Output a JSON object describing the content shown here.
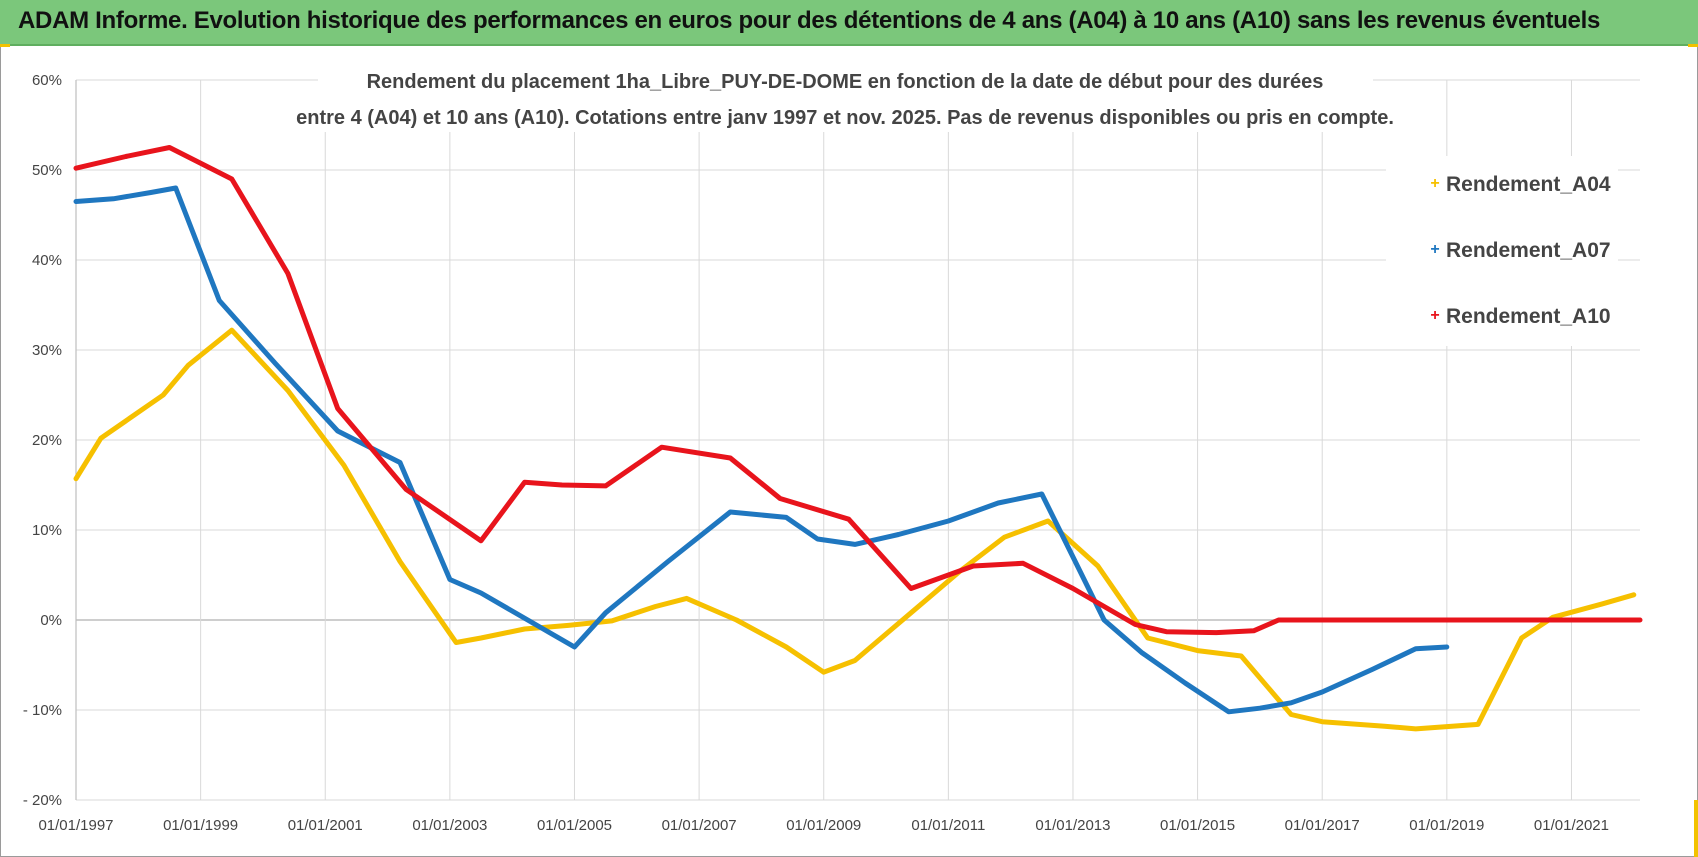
{
  "banner": {
    "title": "ADAM Informe. Evolution historique des performances en euros pour des détentions de 4 ans (A04) à 10 ans (A10) sans les revenus éventuels"
  },
  "colors": {
    "banner": "#7bc77b",
    "a04": "#f6c000",
    "a07": "#1f77c0",
    "a10": "#e8141c",
    "grid": "#d9d9d9",
    "zero_line": "#bdbdbd"
  },
  "chart_data": {
    "type": "line",
    "title_lines": [
      "Rendement du placement 1ha_Libre_PUY-DE-DOME en fonction de la date de début pour des durées",
      "entre 4 (A04) et 10 ans (A10). Cotations entre janv 1997 et nov. 2025. Pas de revenus disponibles ou pris en compte."
    ],
    "xlabel": "",
    "ylabel": "",
    "xlim": [
      1997.0,
      2022.1
    ],
    "ylim": [
      -20,
      60
    ],
    "grid": true,
    "legend_position": "top-right",
    "x_ticks": [
      1997,
      1999,
      2001,
      2003,
      2005,
      2007,
      2009,
      2011,
      2013,
      2015,
      2017,
      2019,
      2021
    ],
    "x_tick_labels": [
      "01/01/1997",
      "01/01/1999",
      "01/01/2001",
      "01/01/2003",
      "01/01/2005",
      "01/01/2007",
      "01/01/2009",
      "01/01/2011",
      "01/01/2013",
      "01/01/2015",
      "01/01/2017",
      "01/01/2019",
      "01/01/2021"
    ],
    "y_ticks": [
      60,
      50,
      40,
      30,
      20,
      10,
      0,
      -10,
      -20
    ],
    "y_tick_labels": [
      "60%",
      "50%",
      "40%",
      "30%",
      "20%",
      "10%",
      "0%",
      "- 10%",
      "- 20%"
    ],
    "series": [
      {
        "name": "Rendement_A04",
        "color": "#f6c000",
        "x": [
          1997.0,
          1997.4,
          1998.4,
          1998.8,
          1999.5,
          2000.4,
          2001.3,
          2002.2,
          2003.1,
          2003.5,
          2004.2,
          2004.9,
          2005.6,
          2006.3,
          2006.8,
          2007.6,
          2008.4,
          2009.0,
          2009.5,
          2010.4,
          2011.2,
          2011.9,
          2012.6,
          2013.4,
          2014.2,
          2015.0,
          2015.7,
          2016.5,
          2017.0,
          2018.0,
          2018.5,
          2019.5,
          2020.2,
          2020.7,
          2021.5,
          2022.0
        ],
        "y": [
          15.7,
          20.2,
          25.0,
          28.3,
          32.2,
          25.5,
          17.2,
          6.5,
          -2.5,
          -2.0,
          -1.0,
          -0.6,
          -0.1,
          1.5,
          2.4,
          0.0,
          -3.0,
          -5.8,
          -4.5,
          0.8,
          5.5,
          9.2,
          11.0,
          6.0,
          -2.0,
          -3.4,
          -4.0,
          -10.5,
          -11.3,
          -11.8,
          -12.1,
          -11.6,
          -2.0,
          0.3,
          1.8,
          2.8
        ]
      },
      {
        "name": "Rendement_A07",
        "color": "#1f77c0",
        "x": [
          1997.0,
          1997.6,
          1998.2,
          1998.6,
          1999.3,
          2000.2,
          2001.2,
          2002.2,
          2003.0,
          2003.5,
          2004.5,
          2005.0,
          2005.5,
          2006.5,
          2007.5,
          2008.4,
          2008.9,
          2009.5,
          2010.2,
          2011.0,
          2011.8,
          2012.5,
          2013.0,
          2013.5,
          2014.1,
          2014.8,
          2015.5,
          2016.0,
          2016.5,
          2017.0,
          2017.8,
          2018.5,
          2019.0
        ],
        "y": [
          46.5,
          46.8,
          47.5,
          48.0,
          35.5,
          28.5,
          21.0,
          17.5,
          4.5,
          3.0,
          -1.0,
          -3.0,
          0.8,
          6.5,
          12.0,
          11.4,
          9.0,
          8.4,
          9.5,
          11.0,
          13.0,
          14.0,
          7.0,
          0.0,
          -3.6,
          -7.0,
          -10.2,
          -9.8,
          -9.2,
          -8.0,
          -5.5,
          -3.2,
          -3.0
        ]
      },
      {
        "name": "Rendement_A10",
        "color": "#e8141c",
        "x": [
          1997.0,
          1997.8,
          1998.5,
          1999.5,
          2000.4,
          2001.2,
          2002.3,
          2003.5,
          2004.2,
          2004.8,
          2005.5,
          2006.4,
          2007.5,
          2008.3,
          2009.4,
          2010.4,
          2011.4,
          2012.2,
          2013.0,
          2014.0,
          2014.5,
          2015.3,
          2015.9,
          2016.3,
          2017.0,
          2018.0,
          2019.0,
          2020.0,
          2021.0,
          2022.1
        ],
        "y": [
          50.2,
          51.5,
          52.5,
          49.0,
          38.5,
          23.5,
          14.5,
          8.8,
          15.3,
          15.0,
          14.9,
          19.2,
          18.0,
          13.5,
          11.2,
          3.5,
          6.0,
          6.3,
          3.5,
          -0.5,
          -1.3,
          -1.4,
          -1.2,
          0.0,
          0.0,
          0.0,
          0.0,
          0.0,
          0.0,
          0.0
        ]
      }
    ]
  }
}
